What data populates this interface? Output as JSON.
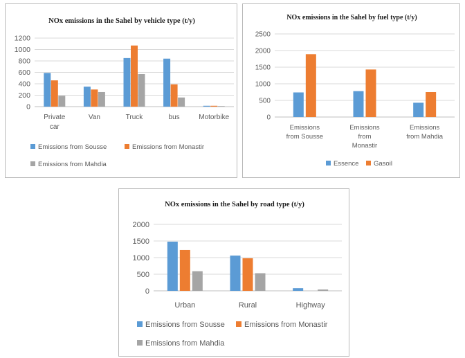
{
  "chart_data": [
    {
      "id": "vehicle",
      "type": "bar",
      "title": "NOx emissions in the Sahel by vehicle type (t/y)",
      "categories": [
        "Private car",
        "Van",
        "Truck",
        "bus",
        "Motorbike"
      ],
      "series": [
        {
          "name": "Emissions from Sousse",
          "color": "#5b9bd5",
          "values": [
            590,
            350,
            850,
            840,
            15
          ]
        },
        {
          "name": "Emissions from Monastir",
          "color": "#ed7d31",
          "values": [
            460,
            300,
            1070,
            390,
            15
          ]
        },
        {
          "name": "Emissions from Mahdia",
          "color": "#a5a5a5",
          "values": [
            190,
            255,
            570,
            160,
            10
          ]
        }
      ],
      "ylim": [
        0,
        1200
      ],
      "yticks": [
        0,
        200,
        400,
        600,
        800,
        1000,
        1200
      ],
      "grid": true,
      "legend": "bottom"
    },
    {
      "id": "fuel",
      "type": "bar",
      "title": "NOx emissions in the Sahel by fuel type (t/y)",
      "categories": [
        "Emissions from Sousse",
        "Emissions from Monastir",
        "Emissions from Mahdia"
      ],
      "series": [
        {
          "name": "Essence",
          "color": "#5b9bd5",
          "values": [
            740,
            780,
            430
          ]
        },
        {
          "name": "Gasoil",
          "color": "#ed7d31",
          "values": [
            1890,
            1430,
            750
          ]
        }
      ],
      "ylim": [
        0,
        2500
      ],
      "yticks": [
        0,
        500,
        1000,
        1500,
        2000,
        2500
      ],
      "grid": true,
      "legend": "bottom"
    },
    {
      "id": "road",
      "type": "bar",
      "title": "NOx emissions in the Sahel by road type (t/y)",
      "categories": [
        "Urban",
        "Rural",
        "Highway"
      ],
      "series": [
        {
          "name": "Emissions from Sousse",
          "color": "#5b9bd5",
          "values": [
            1480,
            1060,
            80
          ]
        },
        {
          "name": "Emissions from Monastir",
          "color": "#ed7d31",
          "values": [
            1230,
            980,
            0
          ]
        },
        {
          "name": "Emissions from Mahdia",
          "color": "#a5a5a5",
          "values": [
            590,
            530,
            40
          ]
        }
      ],
      "ylim": [
        0,
        2000
      ],
      "yticks": [
        0,
        500,
        1000,
        1500,
        2000
      ],
      "grid": true,
      "legend": "bottom"
    }
  ]
}
